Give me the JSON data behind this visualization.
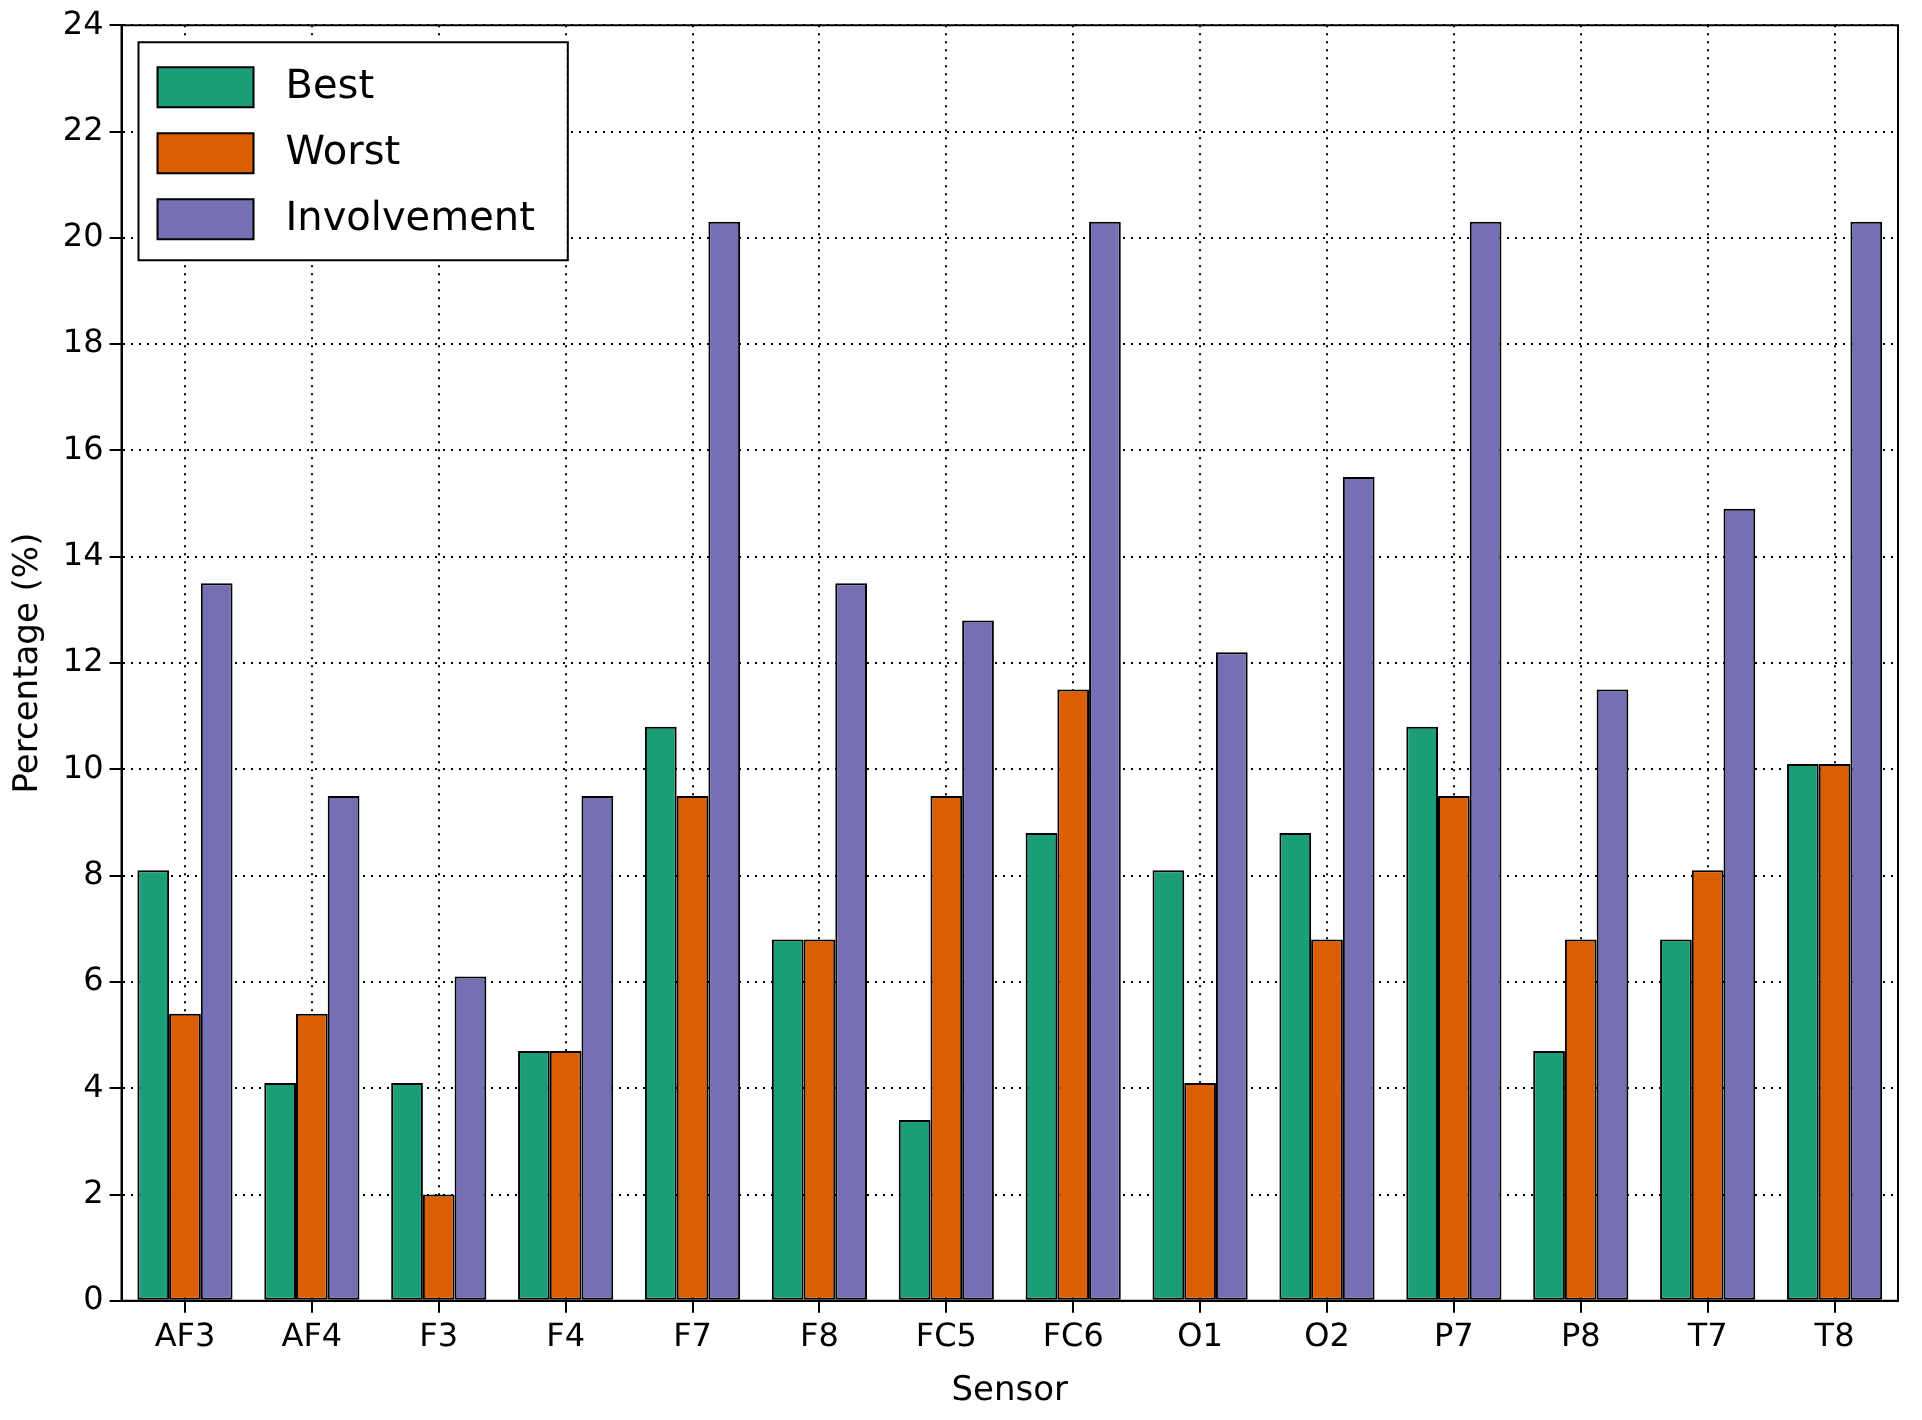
{
  "chart_data": {
    "type": "bar",
    "xlabel": "Sensor",
    "ylabel": "Percentage (%)",
    "categories": [
      "AF3",
      "AF4",
      "F3",
      "F4",
      "F7",
      "F8",
      "FC5",
      "FC6",
      "O1",
      "O2",
      "P7",
      "P8",
      "T7",
      "T8"
    ],
    "series": [
      {
        "name": "Best",
        "color": "#1b9e77",
        "values": [
          8.1,
          4.1,
          4.1,
          4.7,
          10.8,
          6.8,
          3.4,
          8.8,
          8.1,
          8.8,
          10.8,
          4.7,
          6.8,
          10.1
        ]
      },
      {
        "name": "Worst",
        "color": "#d95f02",
        "values": [
          5.4,
          5.4,
          2.0,
          4.7,
          9.5,
          6.8,
          9.5,
          11.5,
          4.1,
          6.8,
          9.5,
          6.8,
          8.1,
          10.1
        ]
      },
      {
        "name": "Involvement",
        "color": "#7570b3",
        "values": [
          13.5,
          9.5,
          6.1,
          9.5,
          20.3,
          13.5,
          12.8,
          20.3,
          12.2,
          15.5,
          20.3,
          11.5,
          14.9,
          20.3
        ]
      }
    ],
    "ylim": [
      0,
      24
    ],
    "yticks": [
      0,
      2,
      4,
      6,
      8,
      10,
      12,
      14,
      16,
      18,
      20,
      22,
      24
    ],
    "grid": true,
    "legend": "top left"
  }
}
